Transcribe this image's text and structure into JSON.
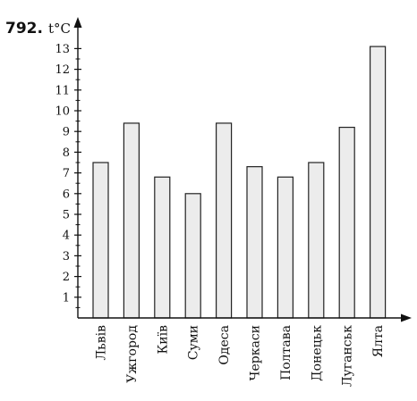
{
  "problem_number": "792.",
  "chart_data": {
    "type": "bar",
    "title": "",
    "xlabel": "",
    "ylabel": "t°C",
    "ylim": [
      0,
      13.5
    ],
    "yticks": [
      1,
      2,
      3,
      4,
      5,
      6,
      7,
      8,
      9,
      10,
      11,
      12,
      13
    ],
    "grid": false,
    "categories": [
      "Львів",
      "Ужгород",
      "Київ",
      "Суми",
      "Одеса",
      "Черкаси",
      "Полтава",
      "Донецьк",
      "Луганськ",
      "Ялта"
    ],
    "values": [
      7.5,
      9.4,
      6.8,
      6.0,
      9.4,
      7.3,
      6.8,
      7.5,
      9.2,
      13.1
    ],
    "colors": {
      "bar_fill": "#ececec",
      "bar_stroke": "#222222",
      "axis": "#111111"
    }
  }
}
